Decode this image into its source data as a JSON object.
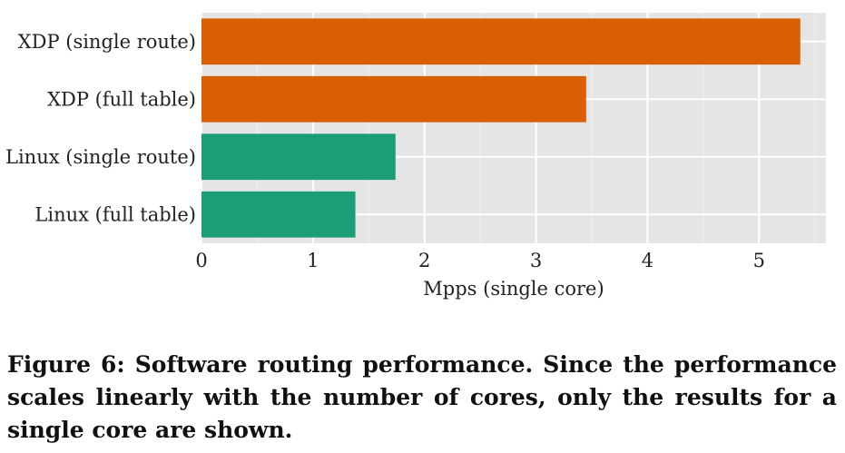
{
  "chart_data": {
    "type": "bar",
    "orientation": "horizontal",
    "categories": [
      "XDP (single route)",
      "XDP (full table)",
      "Linux (single route)",
      "Linux (full table)"
    ],
    "values": [
      5.37,
      3.45,
      1.74,
      1.38
    ],
    "bar_colors": [
      "#d95f02",
      "#d95f02",
      "#1b9e77",
      "#1b9e77"
    ],
    "xlabel": "Mpps (single core)",
    "ylabel": "",
    "xlim": [
      0,
      5.6
    ],
    "xticks": [
      "0",
      "1",
      "2",
      "3",
      "4",
      "5"
    ],
    "grid": true,
    "background": "#e5e5e5"
  },
  "caption": "Figure 6:  Software routing performance. Since the performance scales linearly with the number of cores, only the results for a single core are shown."
}
